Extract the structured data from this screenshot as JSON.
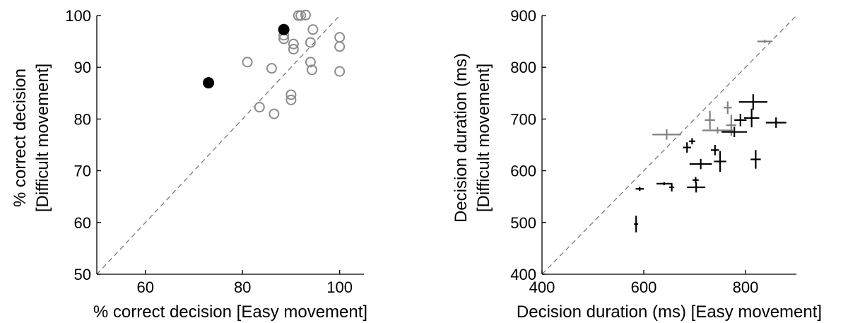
{
  "chart_data": [
    {
      "type": "scatter",
      "xlabel": "% correct decision [Easy movement]",
      "ylabel": [
        "% correct decision",
        "[Difficult movement]"
      ],
      "xlim": [
        50,
        105
      ],
      "ylim": [
        50,
        100
      ],
      "xticks": [
        60,
        80,
        100
      ],
      "yticks": [
        50,
        60,
        70,
        80,
        90,
        100
      ],
      "diagonal": true,
      "grid": false,
      "colors": {
        "gray": "#8c8c8c",
        "black": "#000000"
      },
      "series": [
        {
          "marker": "open-circle",
          "color": "gray",
          "points": [
            [
              91.5,
              100.0
            ],
            [
              92,
              100.0
            ],
            [
              93,
              100.1
            ],
            [
              88.5,
              96.2
            ],
            [
              88.5,
              95.5
            ],
            [
              90.5,
              94.5
            ],
            [
              90.5,
              93.5
            ],
            [
              94.5,
              97.3
            ],
            [
              94,
              94.8
            ],
            [
              100,
              95.8
            ],
            [
              100,
              94.0
            ],
            [
              81,
              91.0
            ],
            [
              86,
              89.8
            ],
            [
              94,
              91.0
            ],
            [
              94.3,
              89.5
            ],
            [
              100,
              89.2
            ],
            [
              90,
              84.7
            ],
            [
              90,
              83.7
            ],
            [
              83.5,
              82.3
            ],
            [
              86.5,
              81.0
            ]
          ]
        },
        {
          "marker": "filled-circle",
          "color": "black",
          "points": [
            [
              88.5,
              97.3
            ],
            [
              73,
              87.0
            ]
          ]
        }
      ]
    },
    {
      "type": "scatter",
      "xlabel": "Decision duration (ms) [Easy movement]",
      "ylabel": [
        "Decision duration (ms)",
        "[Difficult movement]"
      ],
      "xlim": [
        400,
        900
      ],
      "ylim": [
        400,
        900
      ],
      "xticks": [
        400,
        600,
        800
      ],
      "yticks": [
        400,
        500,
        600,
        700,
        800,
        900
      ],
      "diagonal": true,
      "grid": false,
      "colors": {
        "gray": "#808080",
        "black": "#000000"
      },
      "series": [
        {
          "marker": "error-cross",
          "color": "gray",
          "points": [
            {
              "x": 838,
              "y": 850,
              "xe": 15,
              "ye": 3
            },
            {
              "x": 645,
              "y": 670,
              "xe": 28,
              "ye": 10
            },
            {
              "x": 730,
              "y": 698,
              "xe": 10,
              "ye": 18
            },
            {
              "x": 765,
              "y": 722,
              "xe": 8,
              "ye": 12
            },
            {
              "x": 745,
              "y": 678,
              "xe": 30,
              "ye": 6
            },
            {
              "x": 772,
              "y": 688,
              "xe": 10,
              "ye": 20
            }
          ]
        },
        {
          "marker": "error-cross",
          "color": "black",
          "points": [
            {
              "x": 815,
              "y": 733,
              "xe": 28,
              "ye": 15
            },
            {
              "x": 812,
              "y": 702,
              "xe": 15,
              "ye": 18
            },
            {
              "x": 790,
              "y": 698,
              "xe": 12,
              "ye": 12
            },
            {
              "x": 860,
              "y": 693,
              "xe": 20,
              "ye": 10
            },
            {
              "x": 778,
              "y": 675,
              "xe": 25,
              "ye": 10
            },
            {
              "x": 740,
              "y": 640,
              "xe": 8,
              "ye": 10
            },
            {
              "x": 685,
              "y": 645,
              "xe": 8,
              "ye": 10
            },
            {
              "x": 695,
              "y": 657,
              "xe": 6,
              "ye": 6
            },
            {
              "x": 712,
              "y": 613,
              "xe": 22,
              "ye": 10
            },
            {
              "x": 750,
              "y": 618,
              "xe": 12,
              "ye": 20
            },
            {
              "x": 820,
              "y": 622,
              "xe": 10,
              "ye": 18
            },
            {
              "x": 592,
              "y": 565,
              "xe": 8,
              "ye": 4
            },
            {
              "x": 640,
              "y": 575,
              "xe": 15,
              "ye": 3
            },
            {
              "x": 655,
              "y": 568,
              "xe": 5,
              "ye": 8
            },
            {
              "x": 703,
              "y": 568,
              "xe": 18,
              "ye": 10
            },
            {
              "x": 702,
              "y": 582,
              "xe": 6,
              "ye": 6
            },
            {
              "x": 585,
              "y": 497,
              "xe": 4,
              "ye": 16
            }
          ]
        }
      ]
    }
  ]
}
